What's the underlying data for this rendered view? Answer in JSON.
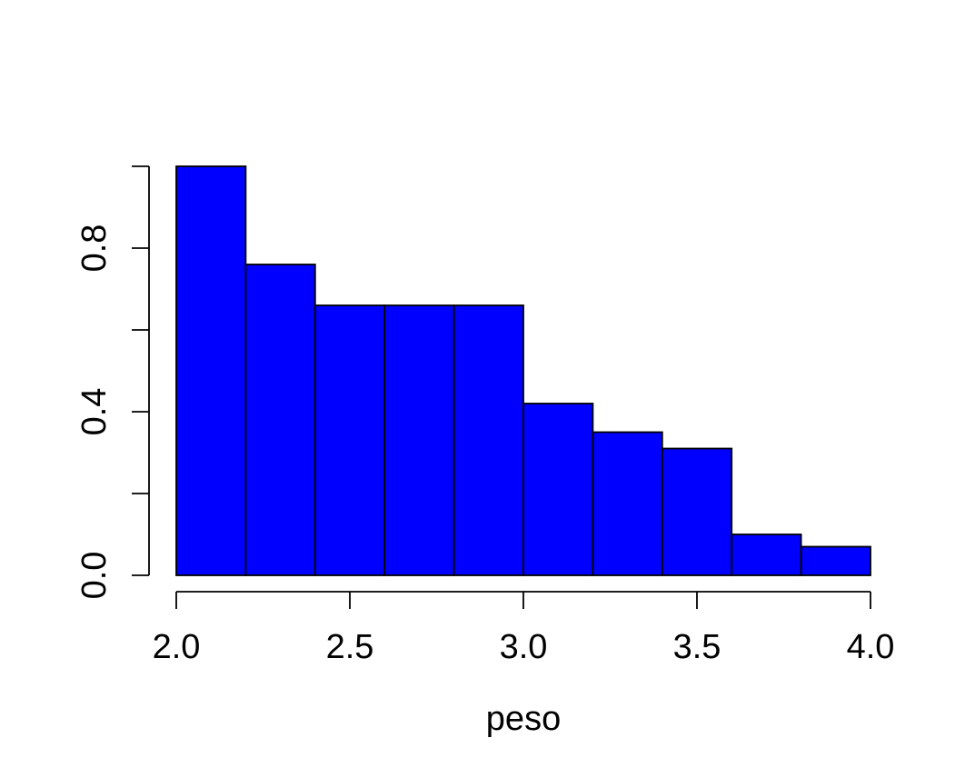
{
  "chart_data": {
    "type": "bar",
    "bins": [
      {
        "start": 2.0,
        "end": 2.2,
        "value": 1.0
      },
      {
        "start": 2.2,
        "end": 2.4,
        "value": 0.76
      },
      {
        "start": 2.4,
        "end": 2.6,
        "value": 0.66
      },
      {
        "start": 2.6,
        "end": 2.8,
        "value": 0.66
      },
      {
        "start": 2.8,
        "end": 3.0,
        "value": 0.66
      },
      {
        "start": 3.0,
        "end": 3.2,
        "value": 0.42
      },
      {
        "start": 3.2,
        "end": 3.4,
        "value": 0.35
      },
      {
        "start": 3.4,
        "end": 3.6,
        "value": 0.31
      },
      {
        "start": 3.6,
        "end": 3.8,
        "value": 0.1
      },
      {
        "start": 3.8,
        "end": 4.0,
        "value": 0.07
      }
    ],
    "xlabel": "peso",
    "ylabel": "",
    "title": "",
    "xlim": [
      2.0,
      4.0
    ],
    "ylim": [
      0.0,
      1.0
    ],
    "x_ticks": [
      {
        "value": 2.0,
        "label": "2.0"
      },
      {
        "value": 2.5,
        "label": "2.5"
      },
      {
        "value": 3.0,
        "label": "3.0"
      },
      {
        "value": 3.5,
        "label": "3.5"
      },
      {
        "value": 4.0,
        "label": "4.0"
      }
    ],
    "y_ticks": [
      {
        "value": 0.0,
        "label": "0.0"
      },
      {
        "value": 0.2,
        "label": ""
      },
      {
        "value": 0.4,
        "label": "0.4"
      },
      {
        "value": 0.6,
        "label": ""
      },
      {
        "value": 0.8,
        "label": "0.8"
      },
      {
        "value": 1.0,
        "label": ""
      }
    ],
    "bar_color": "#0000ff",
    "edge_color": "#000000",
    "grid": false
  }
}
